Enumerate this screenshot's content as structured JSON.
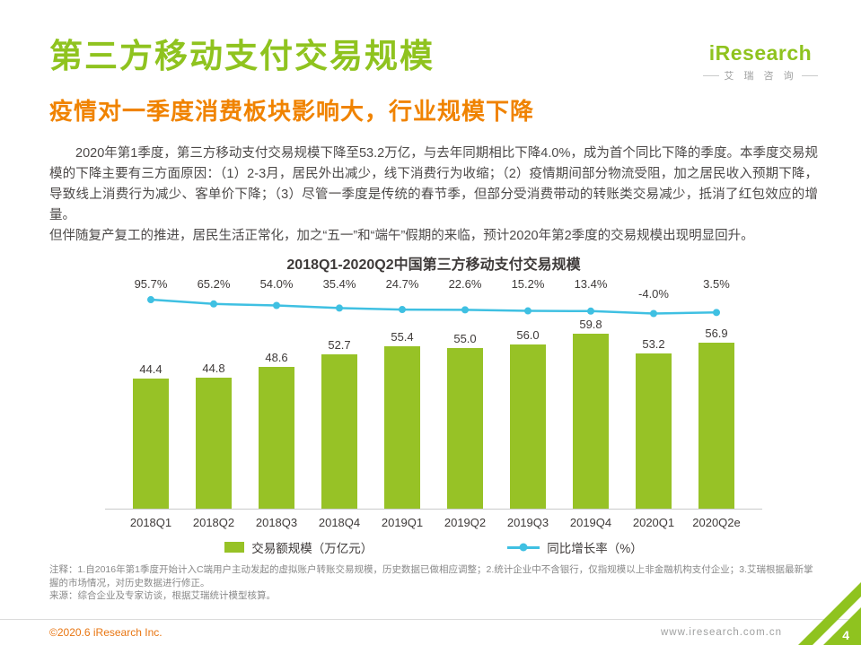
{
  "header": {
    "title": "第三方移动支付交易规模",
    "subtitle": "疫情对一季度消费板块影响大，行业规模下降",
    "logo": {
      "brand": "iResearch",
      "brand_cn": "艾 瑞 咨 询"
    }
  },
  "body": {
    "paragraph1": "2020年第1季度，第三方移动支付交易规模下降至53.2万亿，与去年同期相比下降4.0%，成为首个同比下降的季度。本季度交易规模的下降主要有三方面原因：（1）2-3月，居民外出减少，线下消费行为收缩；（2）疫情期间部分物流受阻，加之居民收入预期下降，导致线上消费行为减少、客单价下降；（3）尽管一季度是传统的春节季，但部分受消费带动的转账类交易减少，抵消了红包效应的增量。",
    "paragraph2": "但伴随复产复工的推进，居民生活正常化，加之“五一”和“端午”假期的来临，预计2020年第2季度的交易规模出现明显回升。"
  },
  "chart_data": {
    "type": "bar",
    "title": "2018Q1-2020Q2中国第三方移动支付交易规模",
    "categories": [
      "2018Q1",
      "2018Q2",
      "2018Q3",
      "2018Q4",
      "2019Q1",
      "2019Q2",
      "2019Q3",
      "2019Q4",
      "2020Q1",
      "2020Q2e"
    ],
    "series": [
      {
        "name": "交易额规模（万亿元）",
        "type": "bar",
        "values": [
          44.4,
          44.8,
          48.6,
          52.7,
          55.4,
          55.0,
          56.0,
          59.8,
          53.2,
          56.9
        ]
      },
      {
        "name": "同比增长率（%）",
        "type": "line",
        "values": [
          95.7,
          65.2,
          54.0,
          35.4,
          24.7,
          22.6,
          15.2,
          13.4,
          -4.0,
          3.5
        ]
      }
    ],
    "ylim": [
      0,
      70
    ],
    "legend_position": "bottom",
    "grid": false,
    "bar_color": "#97c226",
    "line_color": "#3fc0e2"
  },
  "footnotes": {
    "note": "注释：1.自2016年第1季度开始计入C端用户主动发起的虚拟账户转账交易规模，历史数据已做相应调整；2.统计企业中不含银行，仅指规模以上非金融机构支付企业；3.艾瑞根据最新掌握的市场情况，对历史数据进行修正。",
    "source": "来源：综合企业及专家访谈，根据艾瑞统计模型核算。"
  },
  "footer": {
    "copyright": "©2020.6 iResearch Inc.",
    "website": "www.iresearch.com.cn",
    "page_number": "4"
  },
  "colors": {
    "brand_green": "#8fc31f",
    "accent_orange": "#f08300",
    "bar_green": "#97c226",
    "line_cyan": "#3fc0e2",
    "copyright_orange": "#e87511"
  }
}
